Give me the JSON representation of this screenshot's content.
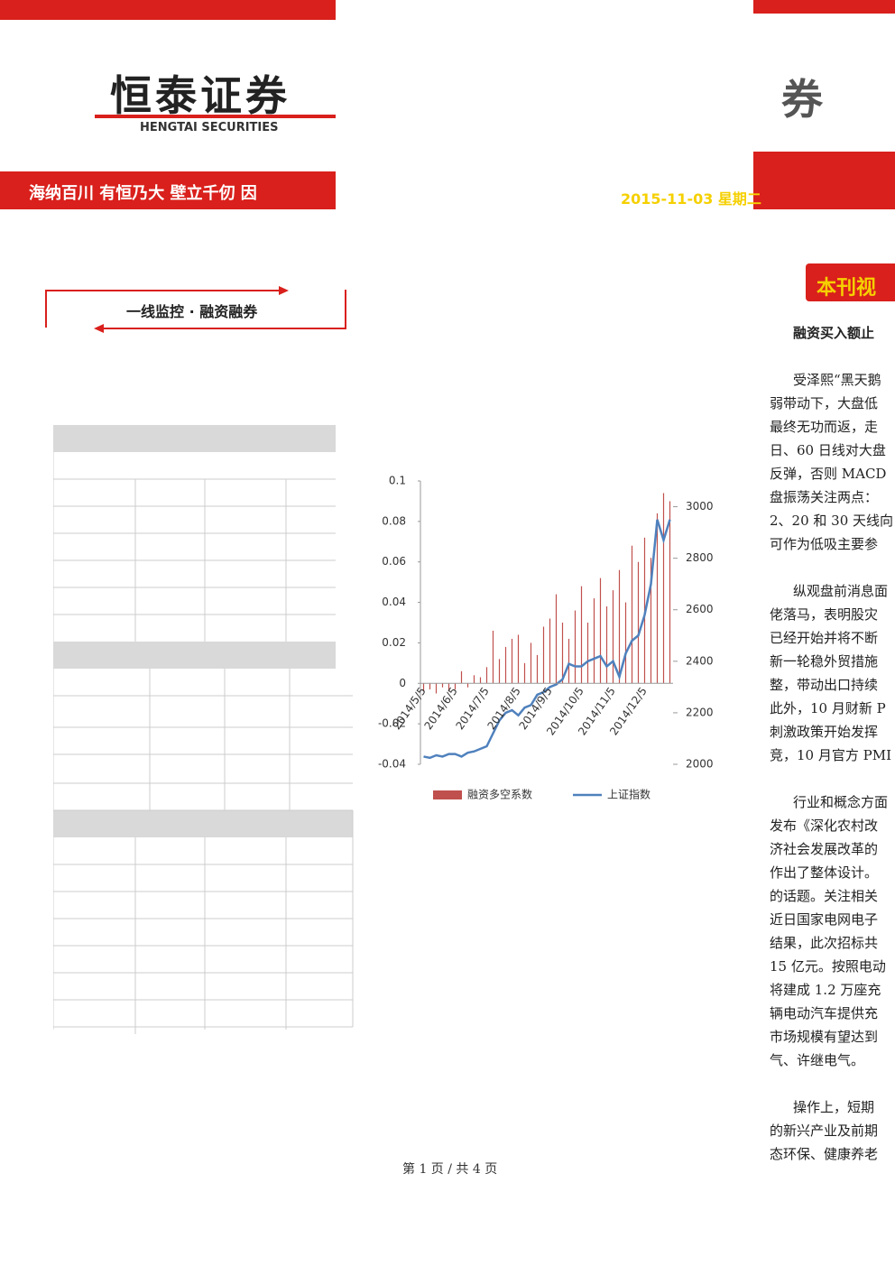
{
  "header": {
    "logo_cn": "恒泰证券",
    "logo_en": "HENGTAI SECURITIES",
    "slogan": "海纳百川 有恒乃大 壁立千仞 因",
    "logo_right": "券",
    "date": "2015-11-03 星期二"
  },
  "section": {
    "title": "一线监控 · 融资融券"
  },
  "sidebar": {
    "title": "本刊视",
    "headline": "融资买入额止",
    "paragraphs": [
      [
        "受泽熙“黑天鹅",
        "弱带动下，大盘低",
        "最终无功而返，走",
        "日、60 日线对大盘",
        "反弹，否则 MACD",
        "盘振荡关注两点：",
        "2、20 和 30 天线向",
        "可作为低吸主要参"
      ],
      [
        "纵观盘前消息面",
        "佬落马，表明股灾",
        "已经开始并将不断",
        "新一轮稳外贸措施",
        "整，带动出口持续",
        "此外，10 月财新 P",
        "刺激政策开始发挥",
        "竞，10 月官方 PMI"
      ],
      [
        "行业和概念方面",
        "发布《深化农村改",
        "济社会发展改革的",
        "作出了整体设计。",
        "的话题。关注相关",
        "近日国家电网电子",
        "结果，此次招标共",
        "15 亿元。按照电动",
        "将建成 1.2 万座充",
        "辆电动汽车提供充",
        "市场规模有望达到",
        "气、许继电气。"
      ],
      [
        "操作上，短期",
        "的新兴产业及前期",
        "态环保、健康养老"
      ]
    ]
  },
  "chart_data": {
    "type": "bar-line",
    "categories": [
      "2014/5/5",
      null,
      null,
      null,
      null,
      "2014/6/5",
      null,
      null,
      null,
      null,
      "2014/7/5",
      null,
      null,
      null,
      null,
      "2014/8/5",
      null,
      null,
      null,
      null,
      "2014/9/5",
      null,
      null,
      null,
      null,
      "2014/10/5",
      null,
      null,
      null,
      null,
      "2014/11/5",
      null,
      null,
      null,
      null,
      "2014/12/5",
      null,
      null,
      null,
      null
    ],
    "series": [
      {
        "name": "融资多空系数",
        "color": "#c0504d",
        "values": [
          -0.004,
          -0.003,
          -0.005,
          -0.002,
          -0.004,
          -0.003,
          0.006,
          -0.002,
          0.004,
          0.003,
          0.008,
          0.026,
          0.012,
          0.018,
          0.022,
          0.024,
          0.01,
          0.02,
          0.014,
          0.028,
          0.032,
          0.044,
          0.03,
          0.022,
          0.036,
          0.048,
          0.03,
          0.042,
          0.052,
          0.038,
          0.046,
          0.056,
          0.04,
          0.068,
          0.06,
          0.072,
          0.062,
          0.084,
          0.094,
          0.09
        ]
      },
      {
        "name": "上证指数",
        "color": "#4f81bd",
        "axis": "y2",
        "values": [
          2030,
          2025,
          2035,
          2030,
          2040,
          2040,
          2030,
          2045,
          2050,
          2060,
          2070,
          2120,
          2170,
          2200,
          2210,
          2190,
          2220,
          2230,
          2270,
          2280,
          2300,
          2310,
          2330,
          2390,
          2380,
          2380,
          2400,
          2410,
          2420,
          2380,
          2400,
          2340,
          2430,
          2480,
          2500,
          2580,
          2700,
          2950,
          2870,
          2950
        ]
      }
    ],
    "ylim": [
      -0.04,
      0.1
    ],
    "yticks": [
      -0.04,
      -0.02,
      0,
      0.02,
      0.04,
      0.06,
      0.08,
      0.1
    ],
    "y2lim": [
      2000,
      3100
    ],
    "y2ticks": [
      2000,
      2200,
      2400,
      2600,
      2800,
      3000
    ],
    "grid": false,
    "legend": "bottom"
  },
  "footer": {
    "page": "第 1 页 / 共 4 页"
  }
}
